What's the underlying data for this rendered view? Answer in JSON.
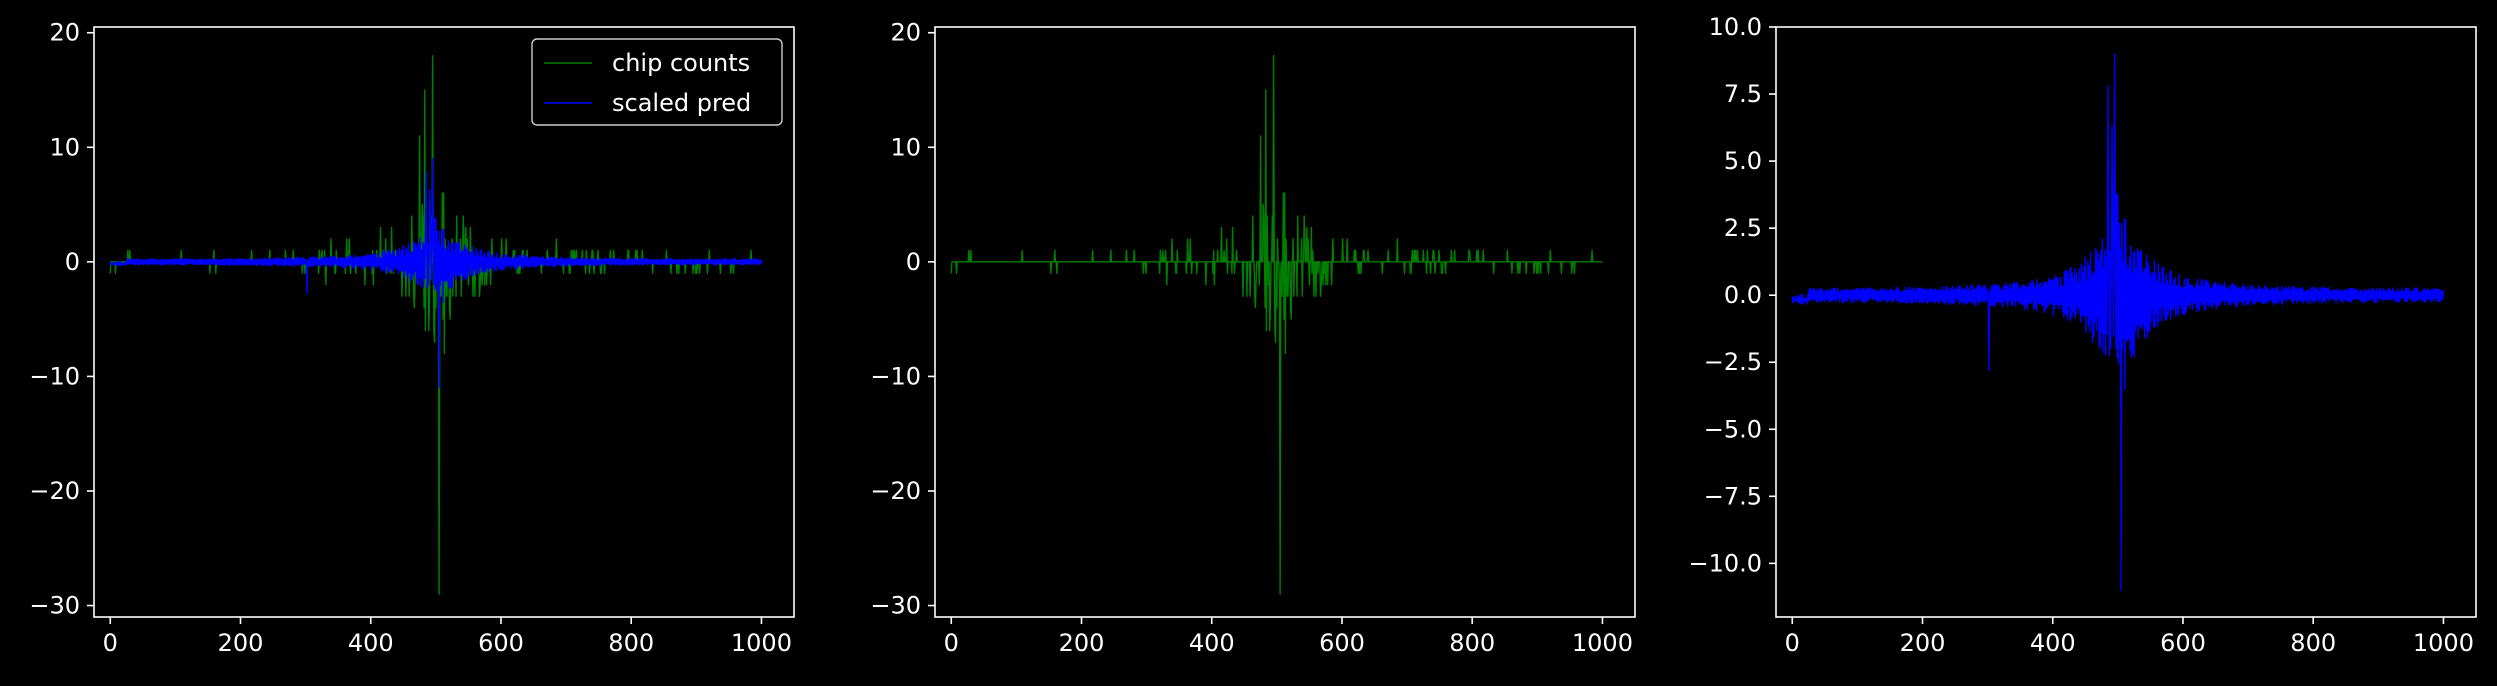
{
  "figure": {
    "background": "#000000",
    "foreground": "#ffffff"
  },
  "chart_data": [
    {
      "type": "line",
      "xlim": [
        -25,
        1050
      ],
      "ylim": [
        -31,
        20.5
      ],
      "xticks": [
        0,
        200,
        400,
        600,
        800,
        1000
      ],
      "xtick_labels": [
        "0",
        "200",
        "400",
        "600",
        "800",
        "1000"
      ],
      "yticks": [
        -30,
        -20,
        -10,
        0,
        10,
        20
      ],
      "ytick_labels": [
        "−30",
        "−20",
        "−10",
        "0",
        "10",
        "20"
      ],
      "grid": false,
      "legend": {
        "placement": "top-right",
        "entries": [
          "chip counts",
          "scaled pred"
        ]
      },
      "series": [
        {
          "name": "chip counts",
          "color": "#008000",
          "kind": "counts",
          "spike_peak": 18,
          "spike_trough": -29,
          "spike_x": [
            495,
            505
          ]
        },
        {
          "name": "scaled pred",
          "color": "#0000ff",
          "kind": "pred",
          "spike_peak": 9,
          "spike_trough": -11,
          "spike_x": [
            495,
            505
          ]
        }
      ]
    },
    {
      "type": "line",
      "xlim": [
        -25,
        1050
      ],
      "ylim": [
        -31,
        20.5
      ],
      "xticks": [
        0,
        200,
        400,
        600,
        800,
        1000
      ],
      "xtick_labels": [
        "0",
        "200",
        "400",
        "600",
        "800",
        "1000"
      ],
      "yticks": [
        -30,
        -20,
        -10,
        0,
        10,
        20
      ],
      "ytick_labels": [
        "−30",
        "−20",
        "−10",
        "0",
        "10",
        "20"
      ],
      "grid": false,
      "series": [
        {
          "color": "#008000",
          "kind": "counts",
          "spike_peak": 18,
          "spike_trough": -29,
          "spike_x": [
            495,
            505
          ]
        }
      ]
    },
    {
      "type": "line",
      "xlim": [
        -25,
        1050
      ],
      "ylim": [
        -12,
        10
      ],
      "xticks": [
        0,
        200,
        400,
        600,
        800,
        1000
      ],
      "xtick_labels": [
        "0",
        "200",
        "400",
        "600",
        "800",
        "1000"
      ],
      "yticks": [
        -10,
        -7.5,
        -5,
        -2.5,
        0,
        2.5,
        5,
        7.5,
        10
      ],
      "ytick_labels": [
        "−10.0",
        "−7.5",
        "−5.0",
        "−2.5",
        "0.0",
        "2.5",
        "5.0",
        "7.5",
        "10.0"
      ],
      "grid": false,
      "series": [
        {
          "color": "#0000ff",
          "kind": "pred",
          "spike_peak": 9,
          "spike_trough": -11,
          "spike_x": [
            495,
            505
          ]
        }
      ]
    }
  ]
}
